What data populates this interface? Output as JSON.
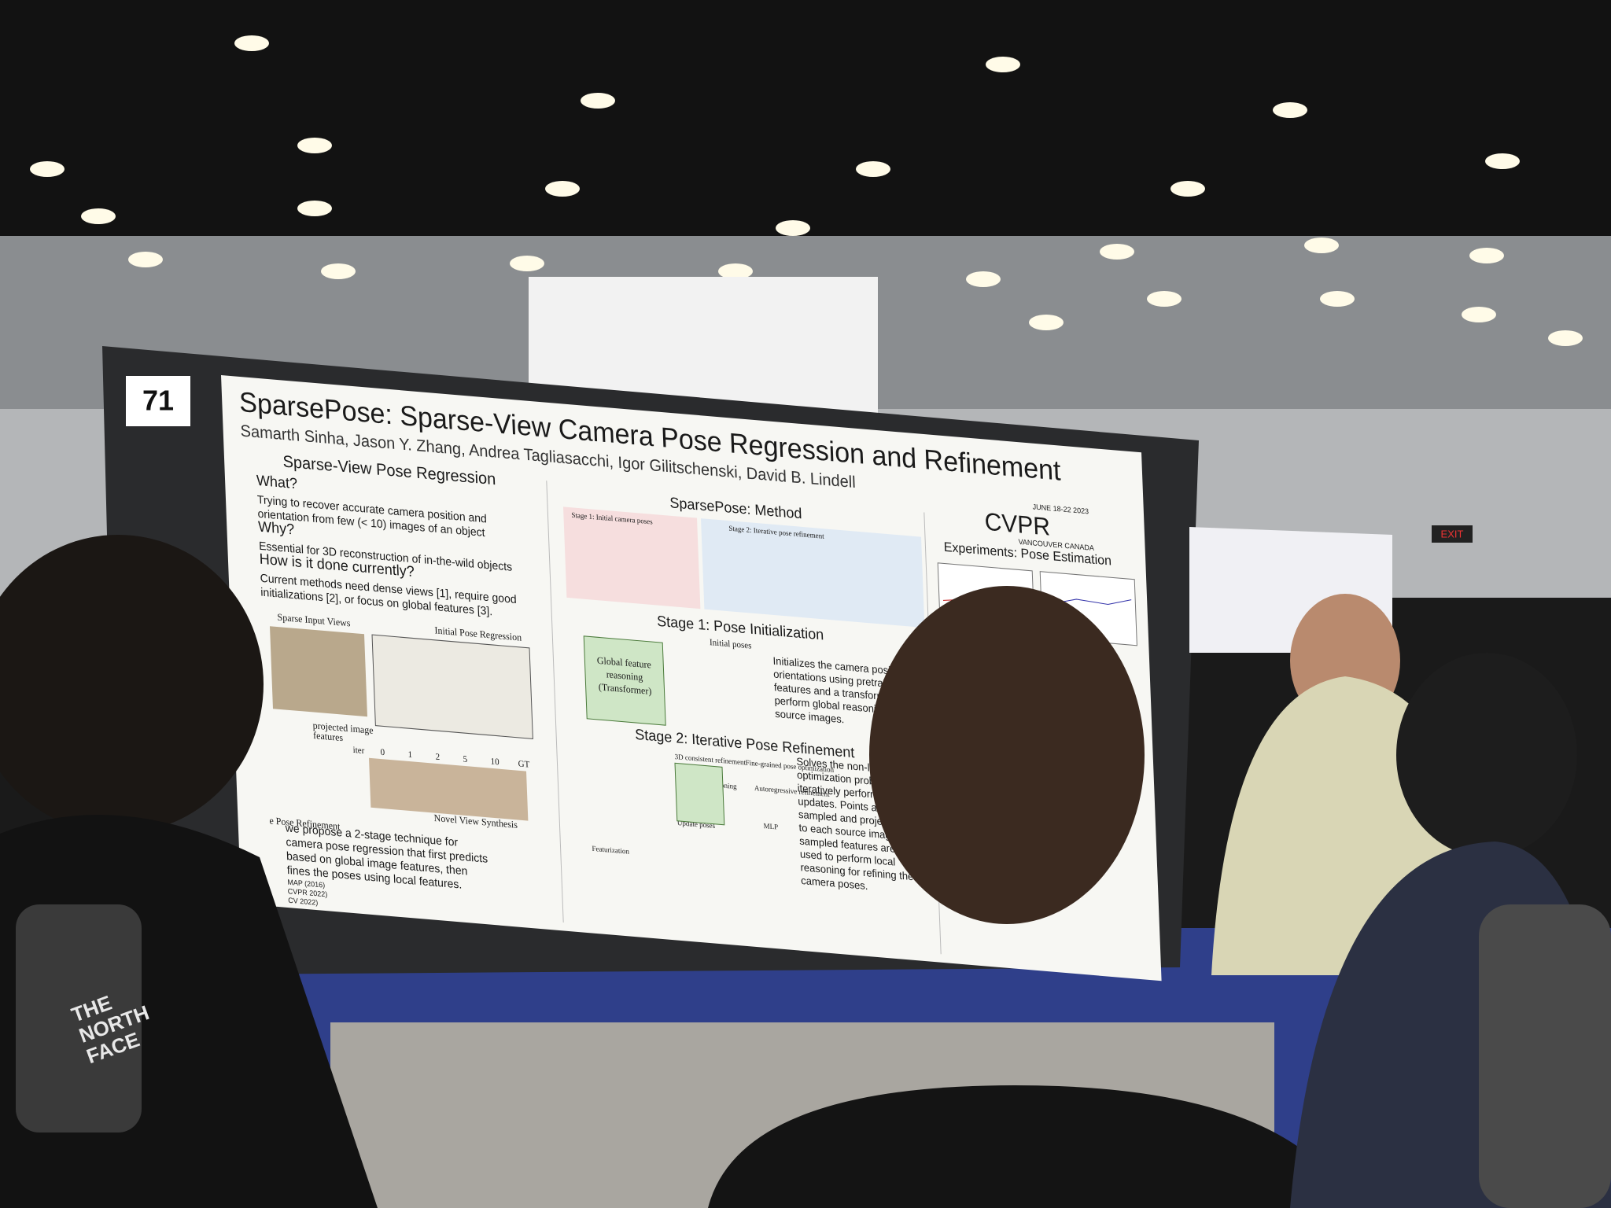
{
  "board_number": "71",
  "poster": {
    "title": "SparsePose: Sparse-View Camera Pose Regression and Refinement",
    "authors": "Samarth Sinha, Jason Y. Zhang, Andrea Tagliasacchi, Igor Gilitschenski, David B. Lindell",
    "venue": {
      "dates": "JUNE 18-22 2023",
      "name": "CVPR",
      "location": "VANCOUVER CANADA"
    },
    "left": {
      "heading": "Sparse-View Pose Regression",
      "items": [
        {
          "q": "What?",
          "a": [
            "Trying to recover accurate camera position and",
            "orientation from few (< 10) images of an object"
          ]
        },
        {
          "q": "Why?",
          "a": [
            "Essential for 3D reconstruction of in-the-wild objects"
          ]
        },
        {
          "q": "How is it done currently?",
          "a": [
            "Current methods need dense views [1], require good",
            "initializations [2], or focus on global features [3]."
          ]
        }
      ],
      "figure_labels": [
        "Sparse Input Views",
        "Initial Pose Regression",
        "projected image",
        "features",
        "Novel View Synthesis",
        "e Pose Refinement"
      ],
      "iterations": [
        "iter",
        "0",
        "1",
        "2",
        "5",
        "10",
        "GT"
      ],
      "summary": [
        "we propose a 2-stage technique for",
        "camera pose regression that first predicts",
        "based on global image features, then",
        "fines the poses using local features."
      ],
      "references": [
        "MAP (2016)",
        "CVPR 2022)",
        "CV 2022)"
      ]
    },
    "method": {
      "heading": "SparsePose: Method",
      "stage1_label": "Stage 1: Initial camera poses",
      "stage2_label": "Stage 2: Iterative pose refinement"
    },
    "stage1": {
      "heading": "Stage 1: Pose Initialization",
      "box": [
        "Global feature",
        "reasoning",
        "(Transformer)"
      ],
      "label": "Initial poses",
      "text": [
        "Initializes the camera positions and",
        "orientations using pretrained image",
        "features and a transformer to",
        "perform global reasoning over",
        "source images."
      ]
    },
    "stage2": {
      "heading": "Stage 2: Iterative Pose Refinement",
      "labels": [
        "3D consistent refinement",
        "Fine-grained pose optimization",
        "Local reasoning",
        "Autoregressive refinement",
        "MLP",
        "Update poses",
        "Featurization"
      ],
      "text": [
        "Solves the non-linear",
        "optimization problem by",
        "iteratively performing pose",
        "updates. Points are randomly",
        "sampled and projected back",
        "to each source image. The",
        "sampled features are then",
        "used to perform local",
        "reasoning for refining the",
        "camera poses."
      ]
    },
    "experiments": {
      "heading": "Experiments: Pose Estimation"
    }
  },
  "signage": {
    "exit": "EXIT",
    "shirt": [
      "THE",
      "NORTH",
      "FACE"
    ]
  }
}
